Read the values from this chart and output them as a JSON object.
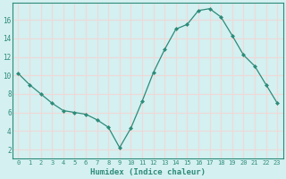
{
  "x": [
    0,
    1,
    2,
    3,
    4,
    5,
    6,
    7,
    8,
    9,
    10,
    11,
    12,
    13,
    14,
    15,
    16,
    17,
    18,
    19,
    20,
    21,
    22,
    23
  ],
  "y": [
    10.2,
    9.0,
    8.0,
    7.0,
    6.2,
    6.0,
    5.8,
    5.2,
    4.4,
    2.2,
    4.3,
    7.2,
    10.3,
    12.8,
    15.0,
    15.5,
    17.0,
    17.2,
    16.3,
    14.3,
    12.2,
    11.0,
    9.0,
    7.0
  ],
  "line_color": "#2e8b7a",
  "marker": "D",
  "marker_size": 2.0,
  "bg_color": "#d4f0f0",
  "grid_color": "#f0d8d8",
  "xlabel": "Humidex (Indice chaleur)",
  "xlim": [
    -0.5,
    23.5
  ],
  "ylim": [
    1.0,
    17.8
  ],
  "yticks": [
    2,
    4,
    6,
    8,
    10,
    12,
    14,
    16
  ],
  "xticks": [
    0,
    1,
    2,
    3,
    4,
    5,
    6,
    7,
    8,
    9,
    10,
    11,
    12,
    13,
    14,
    15,
    16,
    17,
    18,
    19,
    20,
    21,
    22,
    23
  ],
  "tick_color": "#2e8b7a",
  "label_color": "#2e8b7a",
  "tick_fontsize": 5.0,
  "xlabel_fontsize": 6.5,
  "linewidth": 0.9
}
